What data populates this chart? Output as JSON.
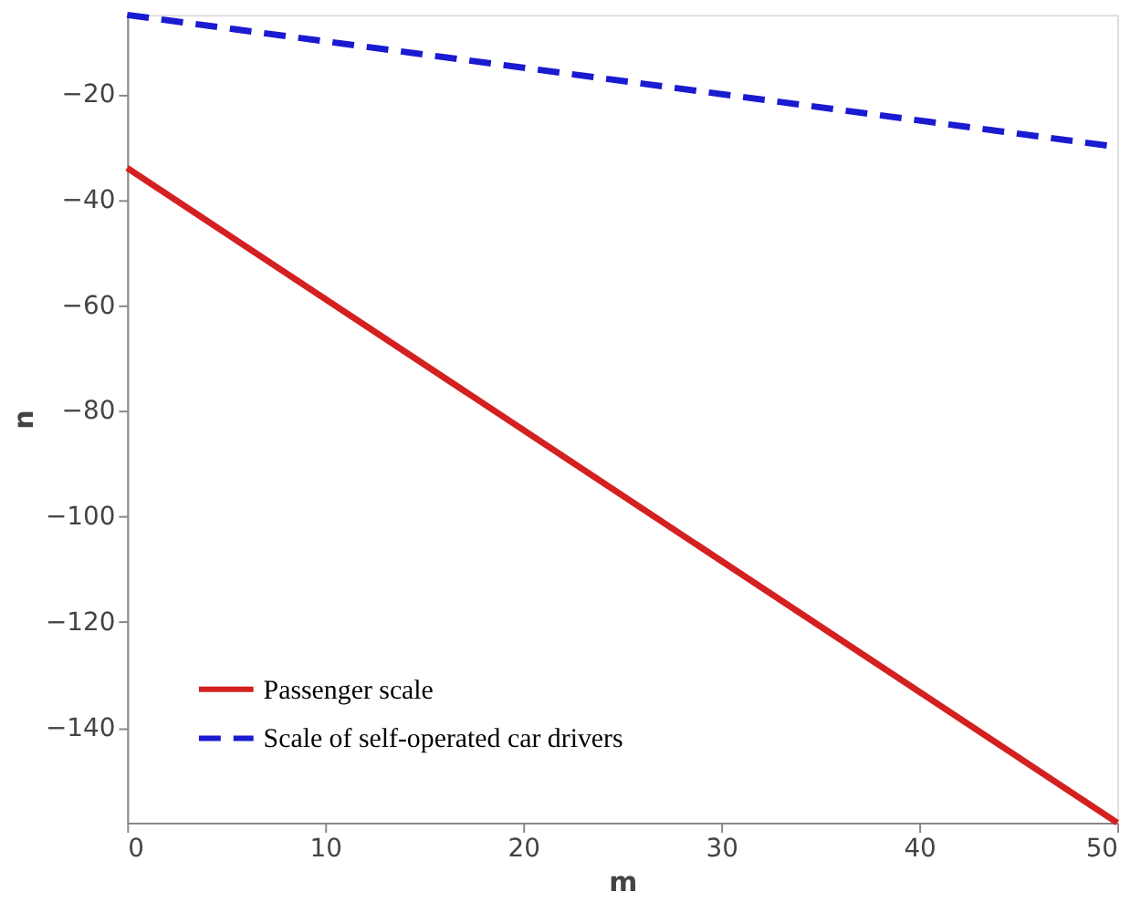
{
  "chart_data": {
    "type": "line",
    "xlabel": "m",
    "ylabel": "n",
    "x": [
      0,
      50
    ],
    "series": [
      {
        "name": "Passenger scale",
        "color": "#d42020",
        "values": [
          -34,
          -158
        ],
        "line_style": "solid"
      },
      {
        "name": "Scale of self-operated car drivers",
        "color": "#1a1ad0",
        "values": [
          -5,
          -30
        ],
        "line_style": "dashed"
      }
    ],
    "xlim": [
      0,
      50
    ],
    "xticks": [
      0,
      10,
      20,
      30,
      40,
      50
    ],
    "ylim": [
      -158,
      -5
    ],
    "yticks": [
      -140,
      -120,
      -100,
      -80,
      -60,
      -40,
      -20
    ],
    "grid": false,
    "legend": "bottom left",
    "marker": "none"
  }
}
